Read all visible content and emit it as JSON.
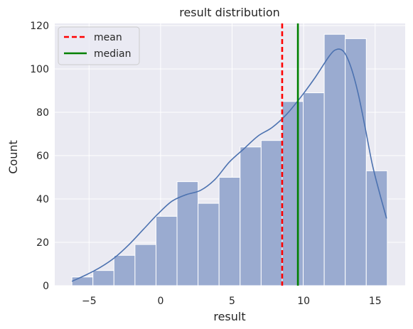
{
  "chart_data": {
    "type": "histogram",
    "title": "result distribution",
    "xlabel": "result",
    "ylabel": "Count",
    "xlim": [
      -7.4,
      17.1
    ],
    "ylim": [
      0,
      121
    ],
    "xticks": [
      -5,
      0,
      5,
      10,
      15
    ],
    "yticks": [
      0,
      20,
      40,
      60,
      80,
      100,
      120
    ],
    "grid": true,
    "bins": {
      "start": -6.2,
      "width": 1.47,
      "counts": [
        4,
        7,
        14,
        19,
        32,
        48,
        38,
        50,
        64,
        67,
        85,
        89,
        116,
        114,
        53
      ]
    },
    "kde": {
      "x": [
        -6.2,
        -5.2,
        -4.2,
        -3.2,
        -2.2,
        -1.2,
        -0.2,
        0.8,
        1.8,
        2.8,
        3.8,
        4.8,
        5.8,
        6.8,
        7.8,
        8.8,
        9.8,
        10.8,
        11.8,
        12.3,
        12.8,
        13.3,
        13.8,
        14.3,
        14.8,
        15.3,
        15.8
      ],
      "y": [
        2,
        5,
        8.5,
        13,
        19,
        26,
        33,
        39,
        42,
        44,
        49,
        57,
        63,
        69,
        73,
        79,
        87,
        96,
        106,
        109,
        108,
        101,
        89,
        73,
        56,
        43,
        31
      ]
    },
    "mean": 8.5,
    "median": 9.6,
    "legend": {
      "placement": "upper-left",
      "entries": [
        {
          "label": "mean",
          "color": "#ff0000",
          "style": "dashed"
        },
        {
          "label": "median",
          "color": "#008000",
          "style": "solid"
        }
      ]
    },
    "colors": {
      "bar": "#9aabd0",
      "kde": "#4c72b0",
      "background": "#eaeaf2",
      "grid": "#ffffff"
    }
  }
}
